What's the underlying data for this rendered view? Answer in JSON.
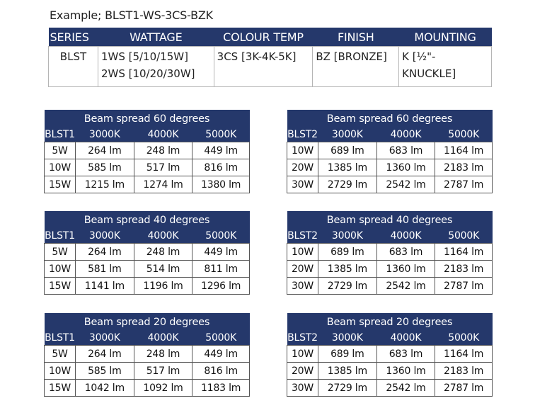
{
  "example": "Example; BLST1-WS-3CS-BZK",
  "code_table": {
    "headers": [
      "SERIES",
      "WATTAGE",
      "COLOUR TEMP",
      "FINISH",
      "MOUNTING"
    ],
    "series": "BLST",
    "wattage_1": "1WS [5/10/15W]",
    "wattage_2": "2WS [10/20/30W]",
    "colour_temp": "3CS [3K-4K-5K]",
    "finish": "BZ [BRONZE]",
    "mounting": "K [½\"-KNUCKLE]"
  },
  "beam_tables": [
    {
      "title": "Beam spread 60 degrees",
      "headers": [
        "BLST1",
        "3000K",
        "4000K",
        "5000K"
      ],
      "rows": [
        [
          "5W",
          "264 lm",
          "248 lm",
          "449 lm"
        ],
        [
          "10W",
          "585 lm",
          "517 lm",
          "816 lm"
        ],
        [
          "15W",
          "1215 lm",
          "1274 lm",
          "1380 lm"
        ]
      ]
    },
    {
      "title": "Beam spread 60 degrees",
      "headers": [
        "BLST2",
        "3000K",
        "4000K",
        "5000K"
      ],
      "rows": [
        [
          "10W",
          "689 lm",
          "683 lm",
          "1164 lm"
        ],
        [
          "20W",
          "1385 lm",
          "1360 lm",
          "2183 lm"
        ],
        [
          "30W",
          "2729 lm",
          "2542 lm",
          "2787 lm"
        ]
      ]
    },
    {
      "title": "Beam spread 40 degrees",
      "headers": [
        "BLST1",
        "3000K",
        "4000K",
        "5000K"
      ],
      "rows": [
        [
          "5W",
          "264 lm",
          "248 lm",
          "449 lm"
        ],
        [
          "10W",
          "581 lm",
          "514 lm",
          "811 lm"
        ],
        [
          "15W",
          "1141 lm",
          "1196 lm",
          "1296 lm"
        ]
      ]
    },
    {
      "title": "Beam spread 40 degrees",
      "headers": [
        "BLST2",
        "3000K",
        "4000K",
        "5000K"
      ],
      "rows": [
        [
          "10W",
          "689 lm",
          "683 lm",
          "1164 lm"
        ],
        [
          "20W",
          "1385 lm",
          "1360 lm",
          "2183 lm"
        ],
        [
          "30W",
          "2729 lm",
          "2542 lm",
          "2787 lm"
        ]
      ]
    },
    {
      "title": "Beam spread 20 degrees",
      "headers": [
        "BLST1",
        "3000K",
        "4000K",
        "5000K"
      ],
      "rows": [
        [
          "5W",
          "264 lm",
          "248 lm",
          "449 lm"
        ],
        [
          "10W",
          "585 lm",
          "517 lm",
          "816 lm"
        ],
        [
          "15W",
          "1042 lm",
          "1092 lm",
          "1183 lm"
        ]
      ]
    },
    {
      "title": "Beam spread 20 degrees",
      "headers": [
        "BLST2",
        "3000K",
        "4000K",
        "5000K"
      ],
      "rows": [
        [
          "10W",
          "689 lm",
          "683 lm",
          "1164 lm"
        ],
        [
          "20W",
          "1385 lm",
          "1360 lm",
          "2183 lm"
        ],
        [
          "30W",
          "2729 lm",
          "2542 lm",
          "2787 lm"
        ]
      ]
    }
  ],
  "colors": {
    "header_bg": "#25386b",
    "header_text": "#ffffff"
  }
}
